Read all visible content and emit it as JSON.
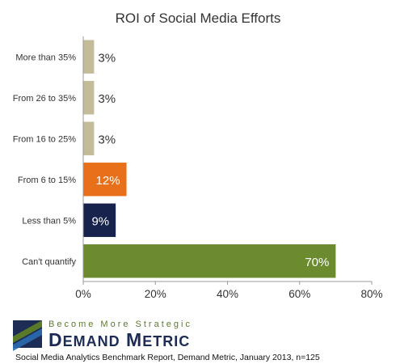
{
  "chart_data": {
    "type": "bar",
    "orientation": "horizontal",
    "title": "ROI of Social Media Efforts",
    "xlabel": "",
    "ylabel": "",
    "categories": [
      "More than 35%",
      "From 26 to 35%",
      "From 16 to 25%",
      "From 6 to 15%",
      "Less than 5%",
      "Can't quantify"
    ],
    "values": [
      3,
      3,
      3,
      12,
      9,
      70
    ],
    "data_labels": [
      "3%",
      "3%",
      "3%",
      "12%",
      "9%",
      "70%"
    ],
    "colors": [
      "#c4bc98",
      "#c4bc98",
      "#c4bc98",
      "#e8701a",
      "#17224d",
      "#6c8b2f"
    ],
    "label_colors": [
      "#333333",
      "#333333",
      "#333333",
      "#ffffff",
      "#ffffff",
      "#ffffff"
    ],
    "xlim": [
      0,
      80
    ],
    "xticks": [
      "0%",
      "20%",
      "40%",
      "60%",
      "80%"
    ],
    "grid": false,
    "legend": "none"
  },
  "branding": {
    "tagline": "Become More Strategic",
    "name": "Demand Metric",
    "colors": {
      "green": "#5a7a2a",
      "navy": "#1c2c55",
      "blue": "#2b6cb0"
    }
  },
  "source": "Social Media Analytics Benchmark Report, Demand Metric, January 2013, n=125"
}
